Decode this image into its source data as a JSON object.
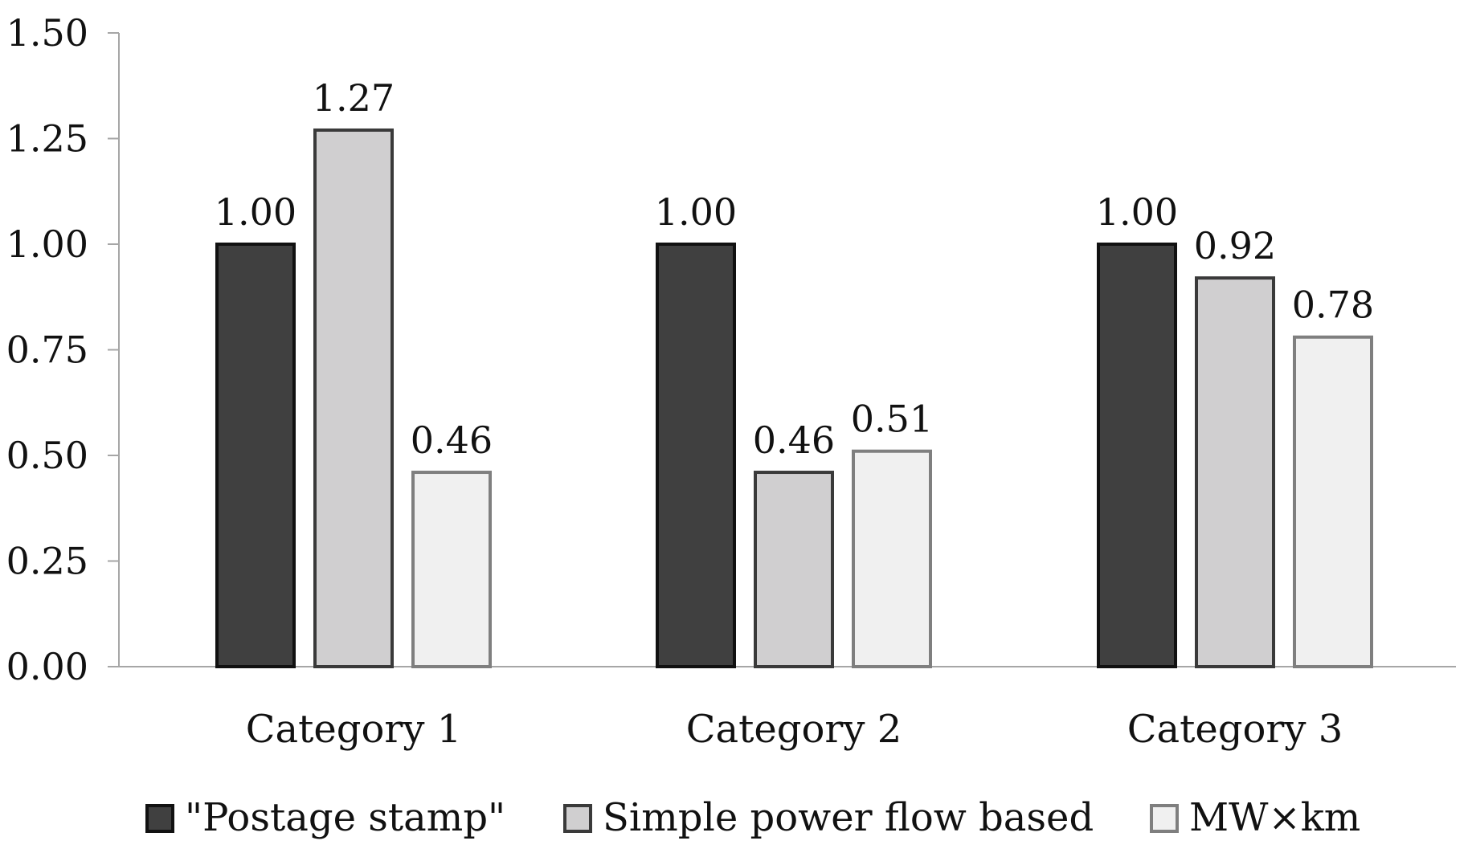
{
  "chart_data": {
    "type": "bar",
    "title": "",
    "xlabel": "",
    "ylabel": "",
    "ylim": [
      0,
      1.5
    ],
    "yticks": [
      "0.00",
      "0.25",
      "0.50",
      "0.75",
      "1.00",
      "1.25",
      "1.50"
    ],
    "categories": [
      "Category 1",
      "Category 2",
      "Category 3"
    ],
    "series": [
      {
        "name": "\"Postage stamp\"",
        "values": [
          1.0,
          1.0,
          1.0
        ],
        "labels": [
          "1.00",
          "1.00",
          "1.00"
        ],
        "fill": "#404040",
        "stroke": "#111111"
      },
      {
        "name": "Simple power flow based",
        "values": [
          1.27,
          0.46,
          0.92
        ],
        "labels": [
          "1.27",
          "0.46",
          "0.92"
        ],
        "fill": "#d0cfd0",
        "stroke": "#3a3a3a"
      },
      {
        "name": "MW×km",
        "values": [
          0.46,
          0.51,
          0.78
        ],
        "labels": [
          "0.46",
          "0.51",
          "0.78"
        ],
        "fill": "#f0f0f0",
        "stroke": "#7f7f7f"
      }
    ],
    "grid": false,
    "legend": "bottom"
  }
}
